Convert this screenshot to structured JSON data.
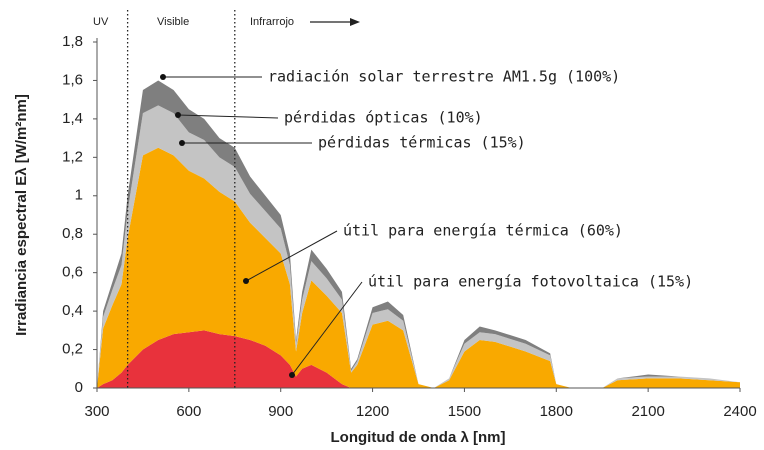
{
  "chart_data": {
    "type": "stacked_area",
    "x_label": "Longitud de onda λ [nm]",
    "y_label": "Irradiancia espectral Eλ [W/m²nm]",
    "regions": [
      "UV",
      "Visible",
      "Infrarrojo"
    ],
    "region_bounds": [
      400,
      750
    ],
    "annotations": [
      "radiación solar terrestre AM1.5g (100%)"
    ],
    "x": [
      300,
      320,
      350,
      380,
      400,
      450,
      500,
      550,
      600,
      650,
      700,
      750,
      800,
      850,
      900,
      930,
      950,
      970,
      1000,
      1050,
      1100,
      1130,
      1150,
      1200,
      1250,
      1300,
      1350,
      1400,
      1450,
      1500,
      1550,
      1600,
      1700,
      1780,
      1800,
      1850,
      1950,
      2000,
      2100,
      2200,
      2300,
      2400
    ],
    "series": [
      {
        "name": "útil para energía fotovoltaica (15%)",
        "color": "#e8323c",
        "values": [
          0,
          0.02,
          0.04,
          0.08,
          0.12,
          0.2,
          0.25,
          0.28,
          0.29,
          0.3,
          0.28,
          0.27,
          0.25,
          0.22,
          0.17,
          0.12,
          0.06,
          0.1,
          0.12,
          0.08,
          0.02,
          0,
          0,
          0,
          0,
          0,
          0,
          0,
          0,
          0,
          0,
          0,
          0,
          0,
          0,
          0,
          0,
          0,
          0,
          0,
          0,
          0
        ]
      },
      {
        "name": "útil para energía térmica (60%)",
        "color": "#f9a900",
        "values": [
          0,
          0.29,
          0.39,
          0.46,
          0.66,
          1.01,
          1.0,
          0.93,
          0.84,
          0.79,
          0.74,
          0.7,
          0.61,
          0.56,
          0.53,
          0.42,
          0.13,
          0.29,
          0.44,
          0.4,
          0.37,
          0.08,
          0.12,
          0.33,
          0.35,
          0.3,
          0.02,
          0,
          0.04,
          0.19,
          0.25,
          0.24,
          0.19,
          0.14,
          0.02,
          0,
          0,
          0.04,
          0.05,
          0.05,
          0.04,
          0.03
        ]
      },
      {
        "name": "pérdidas térmicas (15%)",
        "color": "#c4c4c4",
        "values": [
          0,
          0.06,
          0.08,
          0.1,
          0.14,
          0.22,
          0.22,
          0.22,
          0.2,
          0.2,
          0.18,
          0.18,
          0.15,
          0.14,
          0.13,
          0.1,
          0.04,
          0.07,
          0.1,
          0.09,
          0.07,
          0.01,
          0.02,
          0.06,
          0.06,
          0.05,
          0,
          0,
          0.01,
          0.04,
          0.04,
          0.04,
          0.04,
          0.03,
          0,
          0,
          0,
          0.01,
          0.01,
          0.01,
          0.01,
          0
        ]
      },
      {
        "name": "pérdidas ópticas (10%)",
        "color": "#7f7f7f",
        "values": [
          0,
          0.03,
          0.04,
          0.06,
          0.08,
          0.12,
          0.13,
          0.12,
          0.12,
          0.11,
          0.1,
          0.1,
          0.09,
          0.08,
          0.07,
          0.06,
          0.02,
          0.04,
          0.06,
          0.05,
          0.04,
          0.01,
          0.01,
          0.03,
          0.04,
          0.03,
          0,
          0,
          0,
          0.02,
          0.03,
          0.02,
          0.02,
          0.01,
          0,
          0,
          0,
          0,
          0.01,
          0,
          0,
          0
        ]
      }
    ],
    "xlim": [
      300,
      2400
    ],
    "xticks": [
      300,
      600,
      900,
      1200,
      1500,
      1800,
      2100,
      2400
    ],
    "ylim": [
      0,
      1.8
    ],
    "yticks": [
      0,
      {
        "value": 0.2,
        "label": "0,2"
      },
      {
        "value": 0.4,
        "label": "0,4"
      },
      {
        "value": 0.6,
        "label": "0,6"
      },
      {
        "value": 0.8,
        "label": "0,8"
      },
      1,
      {
        "value": 1.2,
        "label": "1,2"
      },
      {
        "value": 1.4,
        "label": "1,4"
      },
      {
        "value": 1.6,
        "label": "1,6"
      },
      {
        "value": 1.8,
        "label": "1,8"
      }
    ]
  }
}
